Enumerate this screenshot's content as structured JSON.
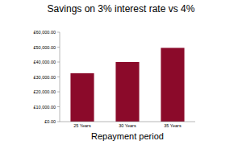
{
  "chart_data": {
    "type": "bar",
    "title": "Savings on 3% interest rate vs 4%",
    "x_label": "Repayment period",
    "categories": [
      "25 Years",
      "30 Years",
      "35 Years"
    ],
    "values": [
      32500,
      40000,
      49500
    ],
    "color": "#8b0a2a",
    "ylim": [
      0,
      60000
    ],
    "yticks": [
      {
        "value": 0,
        "label": "£0.00"
      },
      {
        "value": 10000,
        "label": "£10,000.00"
      },
      {
        "value": 20000,
        "label": "£20,000.00"
      },
      {
        "value": 30000,
        "label": "£30,000.00"
      },
      {
        "value": 40000,
        "label": "£40,000.00"
      },
      {
        "value": 50000,
        "label": "£50,000.00"
      },
      {
        "value": 60000,
        "label": "£60,000.00"
      }
    ],
    "grid": false
  }
}
